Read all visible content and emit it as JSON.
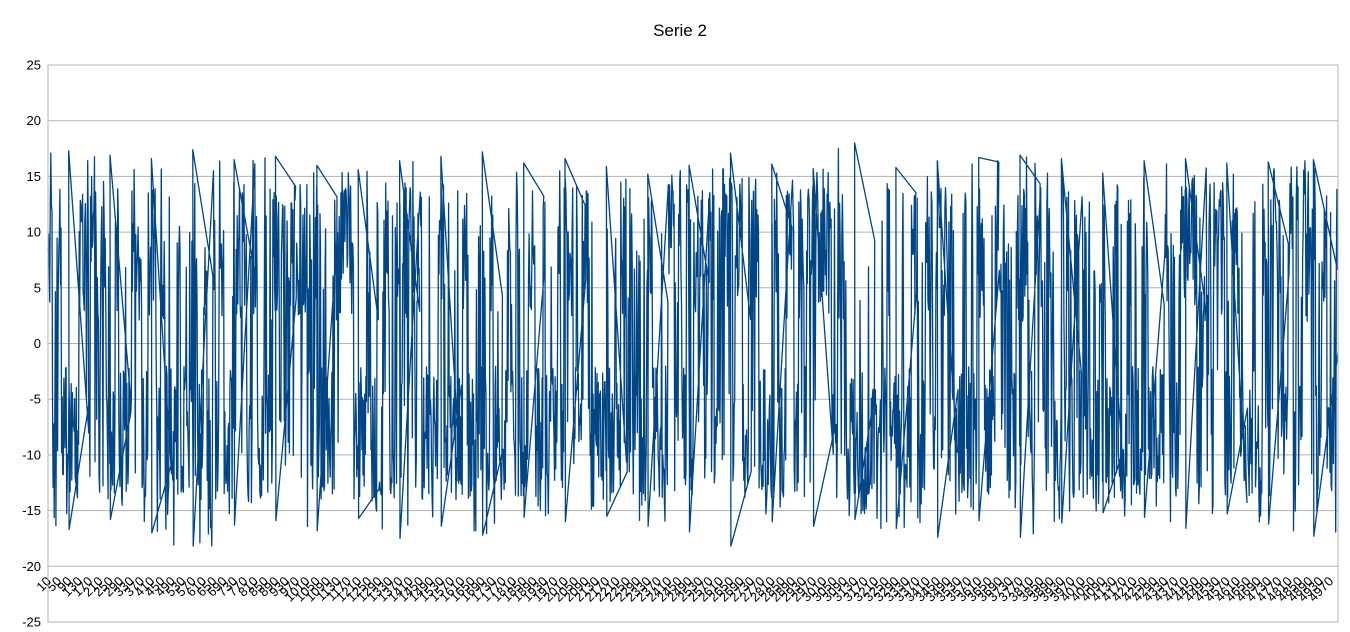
{
  "chart_data": {
    "type": "line",
    "title": "Serie 2",
    "xlabel": "",
    "ylabel": "",
    "ylim": [
      -25,
      25
    ],
    "yticks": [
      -25,
      -20,
      -15,
      -10,
      -5,
      0,
      5,
      10,
      15,
      20,
      25
    ],
    "xlim": [
      10,
      5000
    ],
    "xtick_step": 40,
    "xticks_first": 10,
    "xticks_last": 4970,
    "grid": true,
    "legend": "none",
    "series": [
      {
        "color": "#004586",
        "note_points": "dense oscillating series of ~5000 samples; visible envelope approx -18.2 to 18.0",
        "segments": [
          {
            "x_start": 10,
            "x_end": 170,
            "hi": 17.3,
            "lo": -16.7
          },
          {
            "x_start": 170,
            "x_end": 330,
            "hi": 16.9,
            "lo": -15.8
          },
          {
            "x_start": 330,
            "x_end": 490,
            "hi": 16.6,
            "lo": -17.0
          },
          {
            "x_start": 490,
            "x_end": 650,
            "hi": 17.4,
            "lo": -18.2
          },
          {
            "x_start": 650,
            "x_end": 810,
            "hi": 16.5,
            "lo": -16.3
          },
          {
            "x_start": 810,
            "x_end": 970,
            "hi": 16.8,
            "lo": -15.9
          },
          {
            "x_start": 970,
            "x_end": 1130,
            "hi": 16.0,
            "lo": -16.8
          },
          {
            "x_start": 1130,
            "x_end": 1290,
            "hi": 15.6,
            "lo": -15.7
          },
          {
            "x_start": 1290,
            "x_end": 1450,
            "hi": 16.4,
            "lo": -17.5
          },
          {
            "x_start": 1450,
            "x_end": 1610,
            "hi": 16.8,
            "lo": -16.4
          },
          {
            "x_start": 1610,
            "x_end": 1770,
            "hi": 17.2,
            "lo": -17.2
          },
          {
            "x_start": 1770,
            "x_end": 1930,
            "hi": 16.2,
            "lo": -15.6
          },
          {
            "x_start": 1930,
            "x_end": 2090,
            "hi": 16.6,
            "lo": -16.0
          },
          {
            "x_start": 2090,
            "x_end": 2250,
            "hi": 15.9,
            "lo": -15.5
          },
          {
            "x_start": 2250,
            "x_end": 2410,
            "hi": 15.2,
            "lo": -16.4
          },
          {
            "x_start": 2410,
            "x_end": 2570,
            "hi": 16.0,
            "lo": -16.9
          },
          {
            "x_start": 2570,
            "x_end": 2730,
            "hi": 17.1,
            "lo": -18.2
          },
          {
            "x_start": 2730,
            "x_end": 2890,
            "hi": 16.1,
            "lo": -16.0
          },
          {
            "x_start": 2890,
            "x_end": 3050,
            "hi": 15.7,
            "lo": -16.4
          },
          {
            "x_start": 3050,
            "x_end": 3210,
            "hi": 18.0,
            "lo": -15.8
          },
          {
            "x_start": 3210,
            "x_end": 3370,
            "hi": 15.8,
            "lo": -16.6
          },
          {
            "x_start": 3370,
            "x_end": 3530,
            "hi": 16.4,
            "lo": -17.4
          },
          {
            "x_start": 3530,
            "x_end": 3690,
            "hi": 16.7,
            "lo": -15.9
          },
          {
            "x_start": 3690,
            "x_end": 3850,
            "hi": 16.9,
            "lo": -17.4
          },
          {
            "x_start": 3850,
            "x_end": 4010,
            "hi": 16.6,
            "lo": -16.1
          },
          {
            "x_start": 4010,
            "x_end": 4170,
            "hi": 15.3,
            "lo": -15.2
          },
          {
            "x_start": 4170,
            "x_end": 4330,
            "hi": 16.4,
            "lo": -15.6
          },
          {
            "x_start": 4330,
            "x_end": 4490,
            "hi": 16.6,
            "lo": -16.6
          },
          {
            "x_start": 4490,
            "x_end": 4650,
            "hi": 16.2,
            "lo": -15.3
          },
          {
            "x_start": 4650,
            "x_end": 4810,
            "hi": 16.3,
            "lo": -16.2
          },
          {
            "x_start": 4810,
            "x_end": 5000,
            "hi": 16.5,
            "lo": -17.3
          }
        ]
      }
    ]
  }
}
